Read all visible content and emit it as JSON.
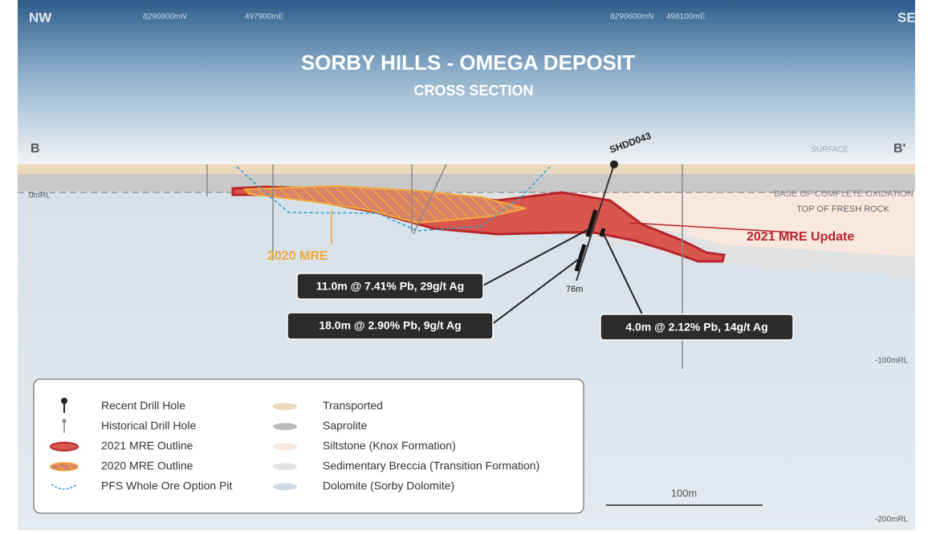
{
  "header": {
    "left_direction": "NW",
    "right_direction": "SE",
    "title": "SORBY HILLS -  OMEGA DEPOSIT",
    "subtitle": "CROSS SECTION"
  },
  "grid_labels": [
    "8290800mN",
    "497900mE",
    "8290600mN",
    "498100mE"
  ],
  "section": {
    "start": "B",
    "end": "B'",
    "surface": "SURFACE"
  },
  "drill_hole": {
    "name": "SHDD043",
    "depth": "76m"
  },
  "levels": [
    "0mRL",
    "-100mRL",
    "-200mRL"
  ],
  "boundaries": [
    "BASE OF COMPLETE OXIDATION",
    "TOP OF FRESH ROCK"
  ],
  "labels": {
    "mre_2021": "2021 MRE Update",
    "mre_2020": "2020 MRE"
  },
  "intercepts": [
    "11.0m @ 7.41% Pb, 29g/t Ag",
    "18.0m @ 2.90% Pb, 9g/t Ag",
    "4.0m @ 2.12% Pb, 14g/t Ag"
  ],
  "scale_bar": "100m",
  "legend": [
    "Recent Drill Hole",
    "Historical Drill Hole",
    "2021 MRE Outline",
    "2020 MRE Outline",
    "PFS Whole Ore Option Pit",
    "Transported",
    "Saprolite",
    "Siltstone (Knox Formation)",
    "Sedimentary Breccia (Transition Formation)",
    "Dolomite (Sorby Dolomite)"
  ]
}
